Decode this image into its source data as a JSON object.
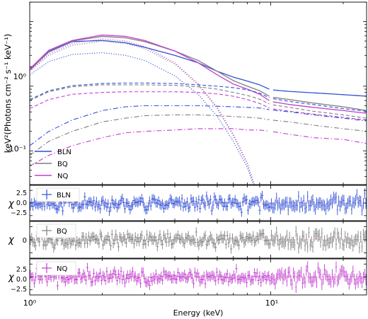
{
  "colors": {
    "BLN": "#2f4fd6",
    "BQ": "#7f7f7f",
    "NQ": "#c23fd1"
  },
  "chart_data": [
    {
      "type": "line",
      "panel": "spectrum",
      "xscale": "log",
      "yscale": "log",
      "xlim": [
        1,
        25
      ],
      "ylim": [
        0.03,
        20
      ],
      "xlabel": "",
      "ylabel": "keV²(Photons cm⁻² s⁻¹ keV⁻¹)",
      "x_tick_labels": [
        "10⁰",
        "10¹"
      ],
      "y_tick_labels": [
        "10⁻¹",
        "10⁰"
      ],
      "legend": {
        "position": "lower-left",
        "entries": [
          "BLN",
          "BQ",
          "NQ"
        ]
      },
      "energy_grid": [
        1.0,
        1.2,
        1.5,
        2.0,
        2.5,
        3.0,
        4.0,
        5.0,
        6.0,
        7.0,
        8.0,
        9.0,
        10.0,
        12.0,
        15.0,
        20.0,
        25.0
      ],
      "series": [
        {
          "name": "BLN",
          "component": "total",
          "style": "solid",
          "values": [
            1.8,
            3.4,
            4.9,
            5.1,
            4.7,
            4.0,
            3.0,
            2.3,
            1.7,
            1.38,
            1.2,
            1.05,
            0.88,
            0.83,
            0.79,
            0.74,
            0.7
          ]
        },
        {
          "name": "BQ",
          "component": "total",
          "style": "solid",
          "values": [
            1.75,
            3.5,
            5.0,
            5.9,
            5.6,
            4.9,
            3.5,
            2.5,
            1.7,
            1.22,
            1.0,
            0.85,
            0.68,
            0.62,
            0.55,
            0.48,
            0.42
          ]
        },
        {
          "name": "NQ",
          "component": "total",
          "style": "solid",
          "values": [
            1.85,
            3.6,
            5.1,
            6.2,
            5.9,
            5.1,
            3.5,
            2.3,
            1.5,
            1.08,
            0.9,
            0.75,
            0.58,
            0.52,
            0.47,
            0.42,
            0.38
          ]
        },
        {
          "name": "BLN",
          "component": "thermal",
          "style": "dotted",
          "values": [
            1.5,
            2.4,
            3.1,
            3.3,
            3.0,
            2.5,
            1.45,
            0.75,
            0.34,
            0.14,
            0.055,
            null,
            null,
            null,
            null,
            null,
            null
          ]
        },
        {
          "name": "BQ",
          "component": "thermal",
          "style": "dotted",
          "values": [
            1.7,
            3.0,
            4.3,
            5.0,
            4.6,
            3.8,
            2.2,
            1.05,
            0.45,
            0.17,
            0.062,
            null,
            null,
            null,
            null,
            null,
            null
          ]
        },
        {
          "name": "NQ",
          "component": "thermal",
          "style": "dotted",
          "values": [
            1.75,
            3.2,
            4.6,
            5.4,
            5.0,
            4.1,
            2.3,
            1.1,
            0.47,
            0.18,
            0.065,
            null,
            null,
            null,
            null,
            null,
            null
          ]
        },
        {
          "name": "BLN",
          "component": "comptonized",
          "style": "dashed",
          "values": [
            0.62,
            0.85,
            1.02,
            1.1,
            1.12,
            1.12,
            1.1,
            1.05,
            1.0,
            0.95,
            0.88,
            0.78,
            0.65,
            0.58,
            0.52,
            0.45,
            0.41
          ]
        },
        {
          "name": "BQ",
          "component": "comptonized",
          "style": "dashed",
          "values": [
            0.6,
            0.82,
            0.98,
            1.05,
            1.05,
            1.05,
            1.03,
            0.98,
            0.9,
            0.8,
            0.72,
            0.63,
            0.52,
            0.47,
            0.41,
            0.36,
            0.32
          ]
        },
        {
          "name": "NQ",
          "component": "comptonized",
          "style": "dashed",
          "values": [
            0.45,
            0.62,
            0.75,
            0.8,
            0.82,
            0.82,
            0.82,
            0.8,
            0.76,
            0.7,
            0.62,
            0.54,
            0.45,
            0.41,
            0.37,
            0.33,
            0.3
          ]
        },
        {
          "name": "BLN",
          "component": "line",
          "style": "dashdot",
          "values": [
            0.12,
            0.2,
            0.3,
            0.42,
            0.48,
            0.5,
            0.5,
            0.5,
            0.49,
            0.48,
            0.47,
            0.46,
            0.43,
            0.4,
            0.36,
            0.32,
            0.29
          ]
        },
        {
          "name": "BQ",
          "component": "line",
          "style": "dashdot",
          "values": [
            0.085,
            0.14,
            0.2,
            0.28,
            0.32,
            0.35,
            0.36,
            0.36,
            0.35,
            0.34,
            0.33,
            0.32,
            0.3,
            0.28,
            0.25,
            0.22,
            0.2
          ]
        },
        {
          "name": "NQ",
          "component": "line",
          "style": "dashdot",
          "values": [
            0.058,
            0.085,
            0.12,
            0.16,
            0.19,
            0.2,
            0.21,
            0.22,
            0.22,
            0.22,
            0.21,
            0.21,
            0.2,
            0.18,
            0.16,
            0.15,
            0.13
          ]
        }
      ]
    },
    {
      "type": "scatter",
      "panel": "residuals",
      "xscale": "log",
      "xlim": [
        1,
        25
      ],
      "ylim": [
        -3.5,
        3.5
      ],
      "ylabel": "χ",
      "y_tick_labels": [
        "−2.5",
        "0.0",
        "2.5"
      ],
      "legend": {
        "position": "top-left",
        "entries": [
          "BLN"
        ]
      },
      "series": [
        {
          "name": "BLN",
          "noise_sigma": 1.0,
          "error_bar": 0.9
        }
      ]
    },
    {
      "type": "scatter",
      "panel": "residuals",
      "xscale": "log",
      "xlim": [
        1,
        25
      ],
      "ylim": [
        -3.5,
        3.5
      ],
      "ylabel": "χ",
      "y_tick_labels": [
        "0"
      ],
      "legend": {
        "position": "top-left",
        "entries": [
          "BQ"
        ]
      },
      "series": [
        {
          "name": "BQ",
          "noise_sigma": 1.0,
          "error_bar": 0.9
        }
      ]
    },
    {
      "type": "scatter",
      "panel": "residuals",
      "xscale": "log",
      "xlim": [
        1,
        25
      ],
      "ylim": [
        -3.5,
        3.5
      ],
      "ylabel": "χ",
      "y_tick_labels": [
        "−2.5",
        "0.0",
        "2.5"
      ],
      "xlabel": "Energy (keV)",
      "x_tick_labels": [
        "10⁰",
        "10¹"
      ],
      "legend": {
        "position": "top-left",
        "entries": [
          "NQ"
        ]
      },
      "series": [
        {
          "name": "NQ",
          "noise_sigma": 1.0,
          "error_bar": 0.9
        }
      ]
    }
  ]
}
